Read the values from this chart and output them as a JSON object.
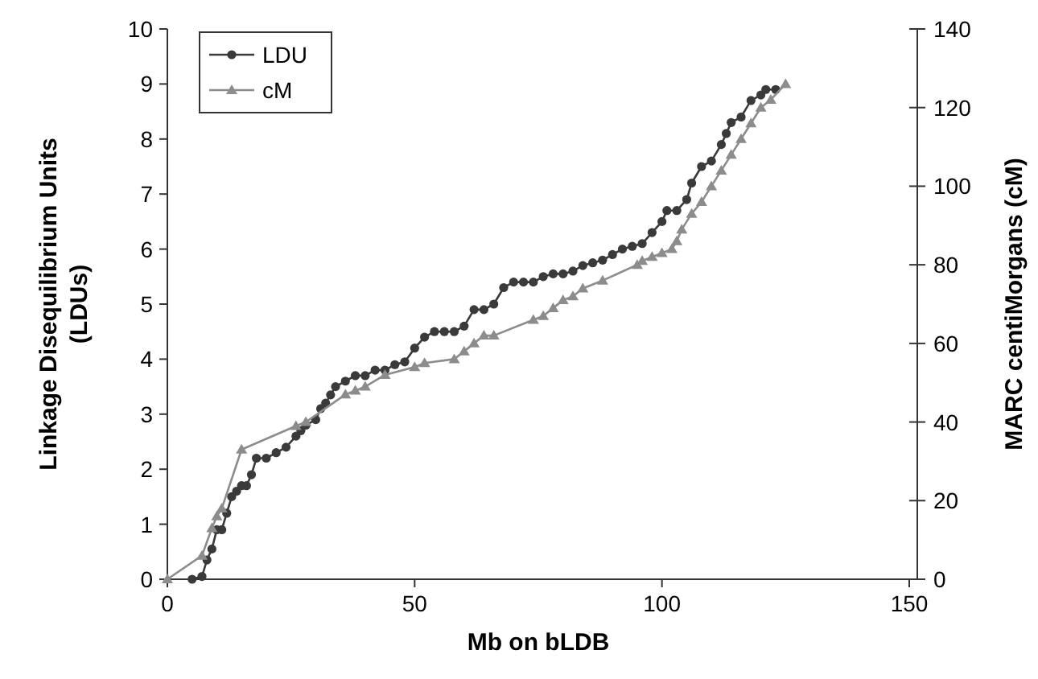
{
  "chart_data": {
    "type": "line",
    "xlabel": "Mb on bLDB",
    "ylabel": "Linkage Disequilibrium Units (LDUs)",
    "y2label": "MARC centiMorgans (cM)",
    "xlim": [
      0,
      150
    ],
    "xticks": [
      0,
      50,
      100,
      150
    ],
    "ylim": [
      0,
      10
    ],
    "yticks": [
      0,
      1,
      2,
      3,
      4,
      5,
      6,
      7,
      8,
      9,
      10
    ],
    "y2lim": [
      0,
      140
    ],
    "y2ticks": [
      0,
      20,
      40,
      60,
      80,
      100,
      120,
      140
    ],
    "legend": "top left",
    "grid": false,
    "series": [
      {
        "name": "LDU",
        "color": "#3a3a3a",
        "marker": "circle",
        "x": [
          5,
          7,
          8,
          9,
          10,
          11,
          12,
          13,
          14,
          15,
          16,
          17,
          18,
          20,
          22,
          24,
          26,
          27,
          28,
          30,
          31,
          32,
          33,
          34,
          36,
          38,
          40,
          42,
          44,
          46,
          48,
          50,
          52,
          54,
          56,
          58,
          60,
          62,
          64,
          66,
          68,
          70,
          72,
          74,
          76,
          78,
          80,
          82,
          84,
          86,
          88,
          90,
          92,
          94,
          96,
          98,
          100,
          101,
          103,
          105,
          106,
          108,
          110,
          112,
          113,
          114,
          116,
          118,
          120,
          121,
          123
        ],
        "values": [
          0,
          0.05,
          0.35,
          0.55,
          0.9,
          0.9,
          1.2,
          1.5,
          1.6,
          1.7,
          1.7,
          1.9,
          2.2,
          2.2,
          2.3,
          2.4,
          2.6,
          2.7,
          2.8,
          2.9,
          3.1,
          3.2,
          3.35,
          3.5,
          3.6,
          3.7,
          3.7,
          3.8,
          3.8,
          3.9,
          3.95,
          4.2,
          4.4,
          4.5,
          4.5,
          4.5,
          4.6,
          4.9,
          4.9,
          5.0,
          5.3,
          5.4,
          5.4,
          5.4,
          5.5,
          5.55,
          5.55,
          5.6,
          5.7,
          5.75,
          5.8,
          5.9,
          6.0,
          6.05,
          6.1,
          6.3,
          6.5,
          6.7,
          6.7,
          6.9,
          7.2,
          7.5,
          7.6,
          7.9,
          8.1,
          8.3,
          8.4,
          8.7,
          8.8,
          8.9,
          8.9
        ]
      },
      {
        "name": "cM",
        "color": "#8c8c8c",
        "marker": "triangle",
        "axis": "y2",
        "x": [
          0,
          7,
          9,
          10,
          11,
          15,
          26,
          28,
          36,
          38,
          40,
          44,
          50,
          52,
          58,
          60,
          62,
          64,
          66,
          74,
          76,
          78,
          80,
          82,
          84,
          88,
          95,
          96,
          98,
          100,
          102,
          103,
          104,
          106,
          108,
          110,
          112,
          114,
          116,
          118,
          120,
          122,
          125
        ],
        "values": [
          0,
          6,
          13,
          16,
          18,
          33,
          39,
          40,
          47,
          48,
          49,
          52,
          54,
          55,
          56,
          58,
          60,
          62,
          62,
          66,
          67,
          69,
          71,
          72,
          74,
          76,
          80,
          81,
          82,
          83,
          84,
          86,
          89,
          93,
          96,
          100,
          104,
          108,
          112,
          116,
          120,
          122,
          126
        ]
      }
    ]
  }
}
